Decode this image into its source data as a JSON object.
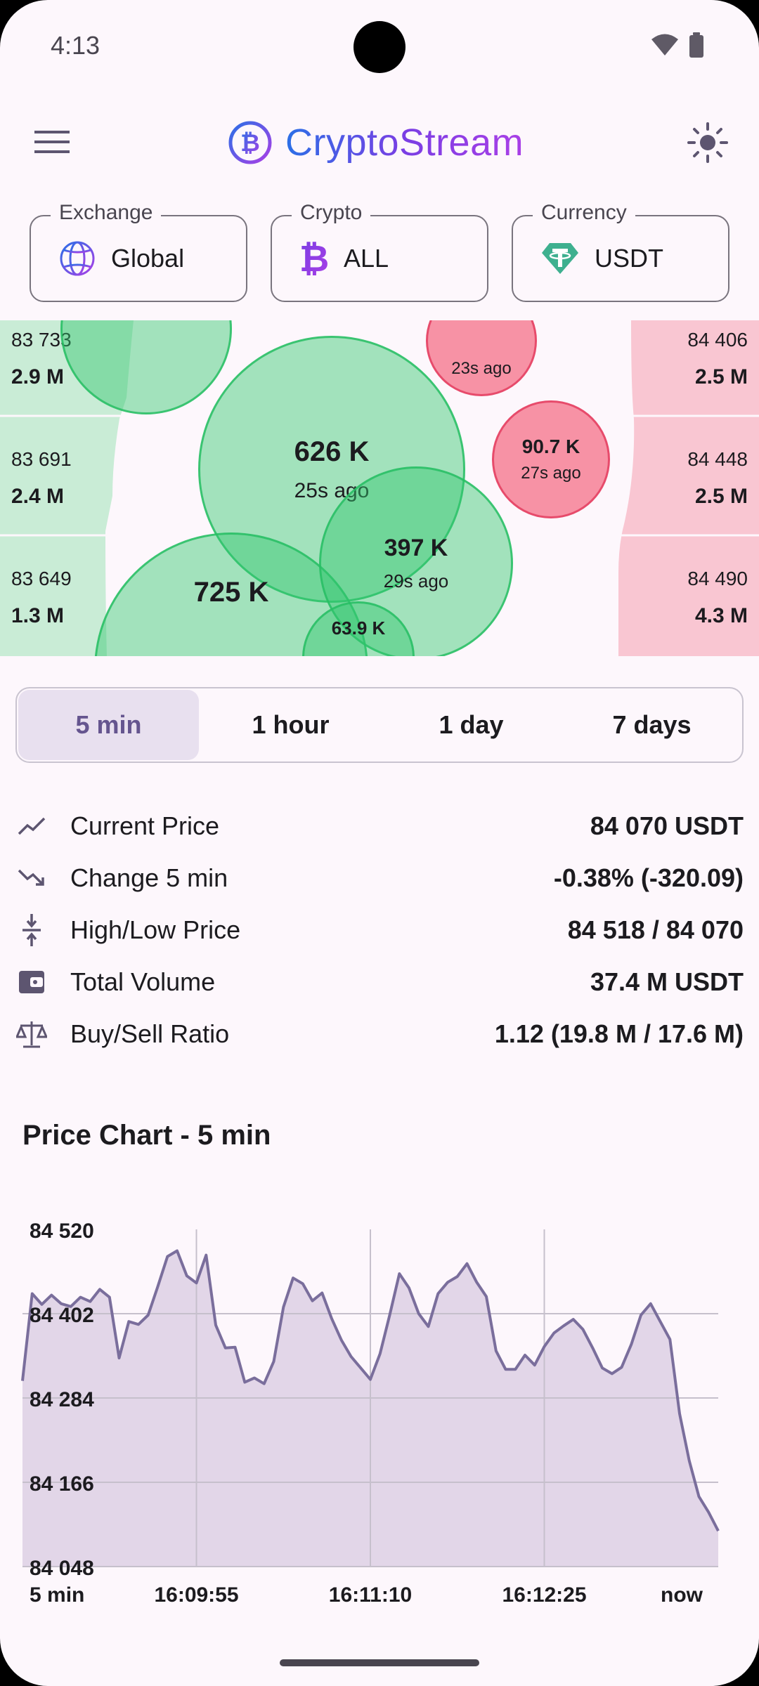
{
  "status_bar": {
    "time": "4:13"
  },
  "app_bar": {
    "title": "CryptoStream"
  },
  "selectors": [
    {
      "legend": "Exchange",
      "value": "Global"
    },
    {
      "legend": "Crypto",
      "value": "ALL"
    },
    {
      "legend": "Currency",
      "value": "USDT"
    }
  ],
  "order_book": {
    "bids": [
      {
        "price": "83 733",
        "volume": "2.9 M"
      },
      {
        "price": "83 691",
        "volume": "2.4 M"
      },
      {
        "price": "83 649",
        "volume": "1.3 M"
      }
    ],
    "asks": [
      {
        "price": "84 406",
        "volume": "2.5 M"
      },
      {
        "price": "84 448",
        "volume": "2.5 M"
      },
      {
        "price": "84 490",
        "volume": "4.3 M"
      }
    ]
  },
  "bubbles": [
    {
      "amount": "626 K",
      "ago": "25s ago",
      "side": "buy"
    },
    {
      "amount": "397 K",
      "ago": "29s ago",
      "side": "buy"
    },
    {
      "amount": "90.7 K",
      "ago": "27s ago",
      "side": "sell"
    },
    {
      "amount": "",
      "ago": "23s ago",
      "side": "sell"
    },
    {
      "amount": "63.9 K",
      "ago": "",
      "side": "buy"
    },
    {
      "amount": "725 K",
      "ago": "",
      "side": "buy"
    }
  ],
  "timeframes": [
    "5 min",
    "1 hour",
    "1 day",
    "7 days"
  ],
  "active_timeframe": "5 min",
  "stats": [
    {
      "icon": "trending-up-icon",
      "label": "Current Price",
      "value": "84 070 USDT"
    },
    {
      "icon": "trending-down-icon",
      "label": "Change 5 min",
      "value": "-0.38% (-320.09)"
    },
    {
      "icon": "high-low-icon",
      "label": "High/Low Price",
      "value": "84 518 / 84 070"
    },
    {
      "icon": "wallet-icon",
      "label": "Total Volume",
      "value": "37.4 M USDT"
    },
    {
      "icon": "scale-icon",
      "label": "Buy/Sell Ratio",
      "value": "1.12 (19.8 M / 17.6 M)"
    }
  ],
  "chart_title": "Price Chart - 5 min",
  "colors": {
    "primary": "#65558f",
    "buy": "#34c76e",
    "sell": "#f47088",
    "chart_fill": "#e2d6e8",
    "chart_line": "#7a6e9c"
  },
  "chart_data": {
    "type": "area",
    "title": "Price Chart - 5 min",
    "xlabel": "",
    "ylabel": "",
    "y_ticks": [
      "84 520",
      "84 402",
      "84 284",
      "84 166",
      "84 048"
    ],
    "x_ticks": [
      "5 min",
      "16:09:55",
      "16:11:10",
      "16:12:25",
      "now"
    ],
    "ylim": [
      84048,
      84520
    ],
    "grid": true,
    "x": [
      0,
      1,
      2,
      3,
      4,
      5,
      6,
      7,
      8,
      9,
      10,
      11,
      12,
      13,
      14,
      15,
      16,
      17,
      18,
      19,
      20,
      21,
      22,
      23,
      24,
      25,
      26,
      27,
      28,
      29,
      30,
      31,
      32,
      33,
      34,
      35,
      36,
      37,
      38,
      39,
      40,
      41,
      42,
      43,
      44,
      45,
      46,
      47,
      48,
      49,
      50,
      51,
      52,
      53,
      54,
      55,
      56,
      57,
      58,
      59,
      60,
      61,
      62,
      63,
      64,
      65,
      66,
      67,
      68,
      69,
      70,
      71,
      72
    ],
    "values": [
      84308,
      84430,
      84415,
      84428,
      84416,
      84412,
      84425,
      84419,
      84436,
      84425,
      84340,
      84391,
      84387,
      84400,
      84440,
      84482,
      84490,
      84455,
      84445,
      84484,
      84386,
      84354,
      84355,
      84306,
      84312,
      84304,
      84335,
      84411,
      84452,
      84444,
      84420,
      84431,
      84395,
      84365,
      84342,
      84326,
      84310,
      84346,
      84400,
      84458,
      84438,
      84402,
      84384,
      84430,
      84446,
      84454,
      84472,
      84446,
      84426,
      84350,
      84324,
      84324,
      84344,
      84330,
      84356,
      84375,
      84385,
      84394,
      84380,
      84354,
      84326,
      84318,
      84327,
      84359,
      84400,
      84416,
      84391,
      84366,
      84262,
      84196,
      84146,
      84124,
      84098
    ]
  }
}
